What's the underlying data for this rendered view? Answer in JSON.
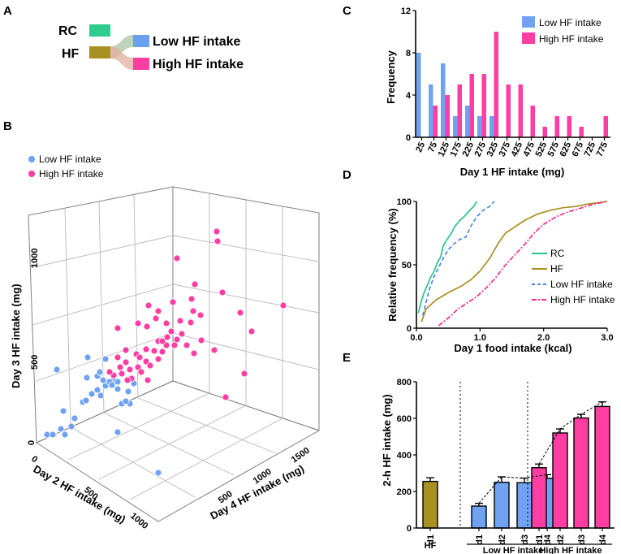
{
  "panels": {
    "a": "A",
    "b": "B",
    "c": "C",
    "d": "D",
    "e": "E"
  },
  "panel_a": {
    "rc": "RC",
    "hf": "HF",
    "low": "Low HF intake",
    "high": "High HF intake",
    "colors": {
      "rc": "#2ecc8f",
      "hf": "#a99022",
      "low": "#6aa0f0",
      "high": "#ff3ea0"
    }
  },
  "colors": {
    "low": "#6fa3f2",
    "high": "#ff3da2",
    "rc": "#29c48a",
    "hf": "#a99022"
  },
  "chart_data": [
    {
      "id": "C",
      "type": "bar",
      "title": "",
      "xlabel": "Day 1 HF intake (mg)",
      "ylabel": "Frequency",
      "ylim": [
        0,
        12
      ],
      "yticks": [
        "0",
        "4",
        "8",
        "12"
      ],
      "categories": [
        "25",
        "75",
        "125",
        "175",
        "225",
        "275",
        "325",
        "375",
        "425",
        "475",
        "525",
        "575",
        "625",
        "675",
        "725",
        "775"
      ],
      "series": [
        {
          "name": "Low HF intake",
          "values": [
            8,
            5,
            7,
            2,
            3,
            2,
            2,
            0,
            0,
            0,
            0,
            0,
            0,
            0,
            0,
            0
          ]
        },
        {
          "name": "High HF intake",
          "values": [
            0,
            3,
            4,
            5,
            6,
            6,
            10,
            5,
            5,
            3,
            1,
            2,
            2,
            1,
            0,
            2
          ]
        }
      ],
      "legend": "top-right"
    },
    {
      "id": "D",
      "type": "line",
      "xlabel": "Day 1 food intake (kcal)",
      "ylabel": "Relative frequency (%)",
      "xlim": [
        0,
        3.0
      ],
      "ylim": [
        0,
        100
      ],
      "xticks": [
        "0.0",
        "1.0",
        "2.0",
        "3.0"
      ],
      "yticks": [
        "0",
        "50",
        "100"
      ],
      "series": [
        {
          "name": "RC",
          "style": "solid",
          "x": [
            0.03,
            0.08,
            0.12,
            0.18,
            0.22,
            0.28,
            0.33,
            0.38,
            0.42,
            0.48,
            0.55,
            0.6,
            0.68,
            0.75,
            0.82,
            0.9,
            0.95
          ],
          "y": [
            12,
            22,
            28,
            35,
            40,
            45,
            52,
            56,
            65,
            70,
            75,
            80,
            85,
            88,
            92,
            96,
            100
          ]
        },
        {
          "name": "HF",
          "style": "solid",
          "x": [
            0.08,
            0.15,
            0.3,
            0.5,
            0.7,
            0.85,
            1.0,
            1.15,
            1.3,
            1.4,
            1.55,
            1.7,
            1.9,
            2.1,
            2.3,
            2.5,
            2.7,
            2.85,
            3.0
          ],
          "y": [
            5,
            15,
            22,
            28,
            33,
            38,
            45,
            55,
            68,
            75,
            80,
            85,
            90,
            93,
            95,
            96,
            98,
            99,
            100
          ]
        },
        {
          "name": "Low HF intake",
          "style": "dashed",
          "x": [
            0.1,
            0.15,
            0.2,
            0.27,
            0.35,
            0.42,
            0.5,
            0.58,
            0.68,
            0.78,
            0.85,
            0.95,
            1.05,
            1.15,
            1.22
          ],
          "y": [
            10,
            20,
            30,
            40,
            48,
            55,
            62,
            66,
            70,
            72,
            80,
            88,
            93,
            96,
            100
          ]
        },
        {
          "name": "High HF intake",
          "style": "dashdot",
          "x": [
            0.35,
            0.5,
            0.65,
            0.8,
            0.95,
            1.1,
            1.25,
            1.4,
            1.55,
            1.7,
            1.85,
            2.0,
            2.2,
            2.4,
            2.6,
            2.8,
            3.0
          ],
          "y": [
            2,
            8,
            15,
            20,
            25,
            32,
            40,
            50,
            58,
            66,
            75,
            82,
            88,
            92,
            95,
            98,
            100
          ]
        }
      ],
      "legend": "right"
    },
    {
      "id": "E",
      "type": "bar",
      "ylabel": "2-h HF intake (mg)",
      "ylim": [
        0,
        800
      ],
      "yticks": [
        "0",
        "200",
        "400",
        "600",
        "800"
      ],
      "categories": [
        "d1",
        "d1",
        "d2",
        "d3",
        "d4",
        "d1",
        "d2",
        "d3",
        "d4"
      ],
      "groups": [
        "HF",
        "Low HF intake",
        "High HF intake"
      ],
      "group_members": [
        1,
        4,
        4
      ],
      "values": [
        255,
        120,
        250,
        248,
        272,
        330,
        520,
        602,
        665
      ],
      "errors": [
        20,
        15,
        30,
        25,
        20,
        20,
        22,
        20,
        25
      ],
      "series_color": [
        "hf",
        "low",
        "low",
        "low",
        "low",
        "high",
        "high",
        "high",
        "high"
      ]
    },
    {
      "id": "B",
      "type": "scatter",
      "title": "",
      "xlabel": "Day 2 HF intake (mg)",
      "ylabel": "Day 3 HF intake (mg)",
      "zlabel": "Day 4 HF intake (mg)",
      "x_ticks": [
        "0",
        "500",
        "1000"
      ],
      "y_ticks": [
        "0",
        "500",
        "1000"
      ],
      "z_ticks": [
        "500",
        "1000",
        "1500"
      ],
      "legend": [
        "Low HF intake",
        "High HF intake"
      ],
      "series": [
        {
          "name": "Low HF intake",
          "points": [
            [
              70,
              455
            ],
            [
              58,
              535
            ],
            [
              66,
              535
            ],
            [
              75,
              528
            ],
            [
              88,
              525
            ],
            [
              92,
              515
            ],
            [
              102,
              495
            ],
            [
              106,
              493
            ],
            [
              113,
              485
            ],
            [
              120,
              480
            ],
            [
              130,
              475
            ],
            [
              140,
              468
            ],
            [
              150,
              460
            ],
            [
              107,
              465
            ],
            [
              120,
              463
            ],
            [
              127,
              468
            ],
            [
              135,
              470
            ],
            [
              145,
              470
            ],
            [
              160,
              497
            ],
            [
              158,
              482
            ],
            [
              165,
              472
            ],
            [
              108,
              440
            ],
            [
              124,
              487
            ],
            [
              138,
              474
            ],
            [
              150,
              497
            ],
            [
              155,
              494
            ],
            [
              145,
              532
            ],
            [
              195,
              582
            ],
            [
              78,
              506
            ],
            [
              145,
              479
            ],
            [
              123,
              458
            ],
            [
              130,
              442
            ],
            [
              80,
              535
            ],
            [
              65,
              535
            ]
          ]
        },
        {
          "name": "High HF intake",
          "points": [
            [
              267,
              285
            ],
            [
              268,
              297
            ],
            [
              218,
              318
            ],
            [
              240,
              350
            ],
            [
              236,
              368
            ],
            [
              213,
              372
            ],
            [
              183,
              376
            ],
            [
              274,
              360
            ],
            [
              195,
              383
            ],
            [
              238,
              383
            ],
            [
              247,
              388
            ],
            [
              192,
              392
            ],
            [
              205,
              398
            ],
            [
              145,
              404
            ],
            [
              170,
              398
            ],
            [
              222,
              395
            ],
            [
              235,
              397
            ],
            [
              296,
              385
            ],
            [
              349,
              376
            ],
            [
              181,
              402
            ],
            [
              211,
              408
            ],
            [
              224,
              411
            ],
            [
              218,
              418
            ],
            [
              206,
              415
            ],
            [
              195,
              420
            ],
            [
              230,
              425
            ],
            [
              205,
              425
            ],
            [
              215,
              425
            ],
            [
              180,
              430
            ],
            [
              190,
              432
            ],
            [
              200,
              433
            ],
            [
              155,
              431
            ],
            [
              168,
              436
            ],
            [
              172,
              440
            ],
            [
              180,
              445
            ],
            [
              185,
              450
            ],
            [
              170,
              452
            ],
            [
              160,
              455
            ],
            [
              150,
              460
            ],
            [
              140,
              462
            ],
            [
              145,
              440
            ],
            [
              155,
              446
            ],
            [
              162,
              466
            ],
            [
              135,
              458
            ],
            [
              174,
              458
            ],
            [
              182,
              468
            ],
            [
              195,
              442
            ],
            [
              310,
              408
            ],
            [
              264,
              431
            ],
            [
              301,
              460
            ],
            [
              278,
              489
            ],
            [
              239,
              435
            ],
            [
              248,
              419
            ],
            [
              148,
              452
            ],
            [
              157,
              468
            ],
            [
              200,
              420
            ]
          ]
        }
      ]
    }
  ]
}
